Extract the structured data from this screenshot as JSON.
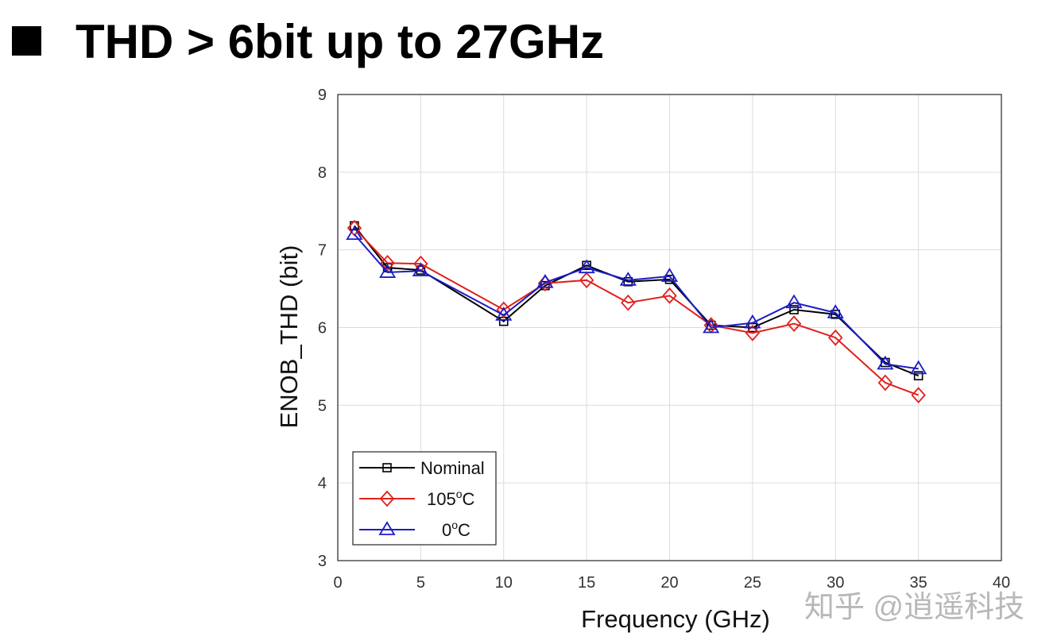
{
  "slide": {
    "title": "THD > 6bit up to 27GHz",
    "watermark": "知乎 @逍遥科技"
  },
  "chart_data": {
    "type": "line",
    "title": "",
    "xlabel": "Frequency (GHz)",
    "ylabel": "ENOB_THD (bit)",
    "xlim": [
      0,
      40
    ],
    "ylim": [
      3,
      9
    ],
    "xticks": [
      0,
      5,
      10,
      15,
      20,
      25,
      30,
      35,
      40
    ],
    "yticks": [
      3,
      4,
      5,
      6,
      7,
      8,
      9
    ],
    "grid": true,
    "legend": "bottom-left",
    "x": [
      1,
      3,
      5,
      10,
      12.5,
      15,
      17.5,
      20,
      22.5,
      25,
      27.5,
      30,
      33,
      35
    ],
    "series": [
      {
        "name": "Nominal",
        "label_main": "Nominal",
        "label_sup": "",
        "label_tail": "",
        "color": "#000000",
        "marker": "square",
        "values": [
          7.31,
          6.77,
          6.74,
          6.08,
          6.54,
          6.8,
          6.59,
          6.62,
          6.03,
          6.0,
          6.23,
          6.17,
          5.55,
          5.38
        ]
      },
      {
        "name": "105oC",
        "label_main": "105",
        "label_sup": "o",
        "label_tail": "C",
        "color": "#e0201c",
        "marker": "diamond",
        "values": [
          7.28,
          6.83,
          6.82,
          6.23,
          6.57,
          6.61,
          6.32,
          6.41,
          6.03,
          5.93,
          6.05,
          5.87,
          5.29,
          5.13
        ]
      },
      {
        "name": "0oC",
        "label_main": "0",
        "label_sup": "o",
        "label_tail": "C",
        "color": "#1c1cc8",
        "marker": "triangle",
        "values": [
          7.2,
          6.71,
          6.73,
          6.16,
          6.58,
          6.77,
          6.61,
          6.66,
          6.0,
          6.06,
          6.32,
          6.19,
          5.53,
          5.47
        ]
      }
    ]
  }
}
